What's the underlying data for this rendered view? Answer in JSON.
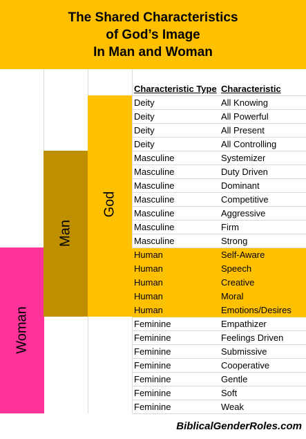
{
  "title": {
    "line1": "The Shared Characteristics",
    "line2": "of God’s Image",
    "line3": "In Man and Woman"
  },
  "groups": {
    "woman": "Woman",
    "man": "Man",
    "god": "God"
  },
  "colors": {
    "banner": "#FFC000",
    "god": "#FFC000",
    "man": "#BF8F00",
    "woman": "#FF3399",
    "human_highlight": "#FFC000"
  },
  "table": {
    "headers": [
      "Characteristic Type",
      "Characteristic"
    ],
    "rows": [
      {
        "type": "Deity",
        "characteristic": "All Knowing"
      },
      {
        "type": "Deity",
        "characteristic": "All Powerful"
      },
      {
        "type": "Deity",
        "characteristic": "All Present"
      },
      {
        "type": "Deity",
        "characteristic": "All Controlling"
      },
      {
        "type": "Masculine",
        "characteristic": "Systemizer"
      },
      {
        "type": "Masculine",
        "characteristic": "Duty Driven"
      },
      {
        "type": "Masculine",
        "characteristic": "Dominant"
      },
      {
        "type": "Masculine",
        "characteristic": "Competitive"
      },
      {
        "type": "Masculine",
        "characteristic": "Aggressive"
      },
      {
        "type": "Masculine",
        "characteristic": "Firm"
      },
      {
        "type": "Masculine",
        "characteristic": "Strong"
      },
      {
        "type": "Human",
        "characteristic": "Self-Aware"
      },
      {
        "type": "Human",
        "characteristic": "Speech"
      },
      {
        "type": "Human",
        "characteristic": "Creative"
      },
      {
        "type": "Human",
        "characteristic": "Moral"
      },
      {
        "type": "Human",
        "characteristic": "Emotions/Desires"
      },
      {
        "type": "Feminine",
        "characteristic": "Empathizer"
      },
      {
        "type": "Feminine",
        "characteristic": "Feelings Driven"
      },
      {
        "type": "Feminine",
        "characteristic": "Submissive"
      },
      {
        "type": "Feminine",
        "characteristic": "Cooperative"
      },
      {
        "type": "Feminine",
        "characteristic": "Gentle"
      },
      {
        "type": "Feminine",
        "characteristic": "Soft"
      },
      {
        "type": "Feminine",
        "characteristic": "Weak"
      }
    ]
  },
  "footer": "BiblicalGenderRoles.com"
}
